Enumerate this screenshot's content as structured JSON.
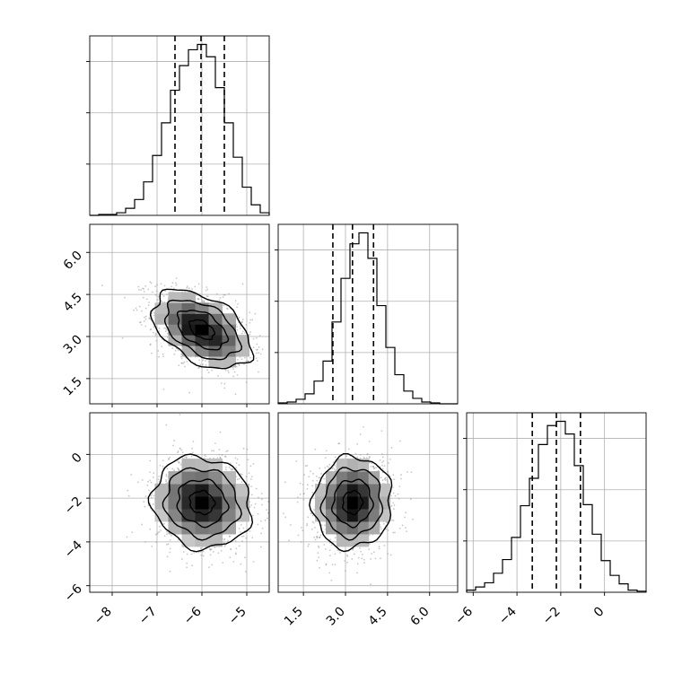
{
  "chart_data": {
    "type": "corner",
    "colors": {
      "line": "#000000",
      "scatter": "#9a9a9a",
      "grid": "#b0b0b0",
      "background": "#ffffff"
    },
    "grid": true,
    "parameters": [
      {
        "index": 0,
        "range": [
          -8.5,
          -4.5
        ],
        "ticks": [
          -8,
          -7,
          -6,
          -5
        ],
        "tick_labels": [
          "−8",
          "−7",
          "−6",
          "−5"
        ],
        "mean": -6.0,
        "std": 0.55,
        "quantiles": [
          -6.6,
          -6.02,
          -5.5
        ]
      },
      {
        "index": 1,
        "range": [
          0.6,
          7.0
        ],
        "ticks": [
          1.5,
          3.0,
          4.5,
          6.0
        ],
        "tick_labels": [
          "1.5",
          "3.0",
          "4.5",
          "6.0"
        ],
        "mean": 3.25,
        "std": 0.7,
        "quantiles": [
          2.55,
          3.25,
          4.0
        ]
      },
      {
        "index": 2,
        "range": [
          -6.3,
          1.9
        ],
        "ticks": [
          -6,
          -4,
          -2,
          0
        ],
        "tick_labels": [
          "−6",
          "−4",
          "−2",
          "0"
        ],
        "mean": -2.2,
        "std": 1.05,
        "quantiles": [
          -3.3,
          -2.2,
          -1.1
        ]
      }
    ],
    "histograms": [
      {
        "param": 0,
        "bins": [
          -8.5,
          -8.3,
          -8.1,
          -7.9,
          -7.7,
          -7.5,
          -7.3,
          -7.1,
          -6.9,
          -6.7,
          -6.5,
          -6.3,
          -6.1,
          -5.9,
          -5.7,
          -5.5,
          -5.3,
          -5.1,
          -4.9,
          -4.7,
          -4.5
        ],
        "counts": [
          0,
          1,
          1,
          3,
          8,
          18,
          38,
          68,
          105,
          142,
          170,
          188,
          194,
          180,
          145,
          105,
          66,
          32,
          12,
          3
        ]
      },
      {
        "param": 1,
        "bins": [
          0.6,
          0.92,
          1.24,
          1.56,
          1.88,
          2.2,
          2.52,
          2.84,
          3.16,
          3.48,
          3.8,
          4.12,
          4.44,
          4.76,
          5.08,
          5.4,
          5.72,
          6.04,
          6.36,
          6.68,
          7.0
        ],
        "counts": [
          1,
          2,
          5,
          11,
          25,
          47,
          90,
          138,
          176,
          188,
          160,
          108,
          62,
          32,
          14,
          6,
          2,
          1,
          0,
          0
        ]
      },
      {
        "param": 2,
        "bins": [
          -6.3,
          -5.89,
          -5.48,
          -5.07,
          -4.66,
          -4.25,
          -3.84,
          -3.43,
          -3.02,
          -2.61,
          -2.2,
          -1.79,
          -1.38,
          -0.97,
          -0.56,
          -0.15,
          0.26,
          0.67,
          1.08,
          1.49,
          1.9
        ],
        "counts": [
          2,
          5,
          9,
          18,
          31,
          52,
          82,
          108,
          140,
          158,
          162,
          150,
          120,
          83,
          55,
          30,
          16,
          8,
          2,
          1
        ]
      }
    ],
    "pairs": [
      {
        "x_param": 0,
        "y_param": 1,
        "correlation": -0.45
      },
      {
        "x_param": 0,
        "y_param": 2,
        "correlation": -0.1
      },
      {
        "x_param": 1,
        "y_param": 2,
        "correlation": 0.05
      }
    ]
  }
}
